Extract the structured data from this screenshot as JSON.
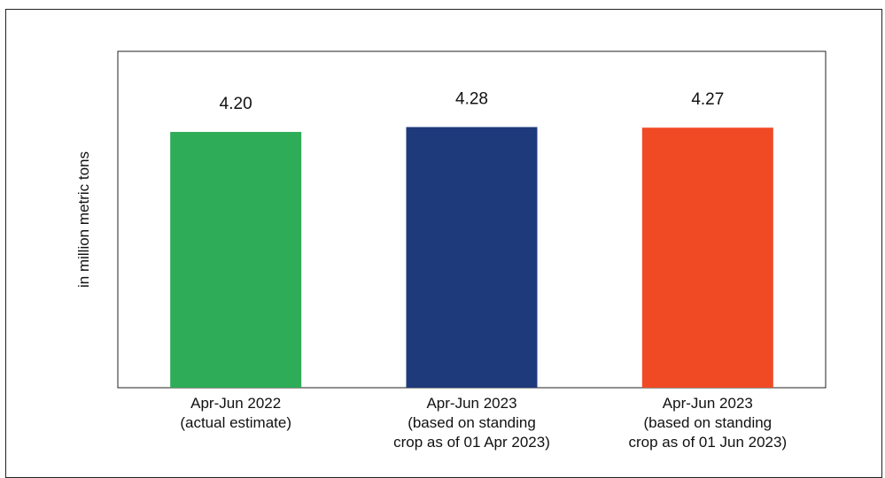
{
  "chart_data": {
    "type": "bar",
    "title": "",
    "xlabel": "",
    "ylabel": "in million metric tons",
    "ylim": [
      0,
      4.8
    ],
    "grid": false,
    "legend": "none",
    "categories": [
      [
        "Apr-Jun 2022",
        "(actual estimate)"
      ],
      [
        "Apr-Jun 2023",
        "(based on standing",
        "crop as of 01 Apr 2023)"
      ],
      [
        "Apr-Jun 2023",
        "(based on standing",
        "crop as of 01 Jun 2023)"
      ]
    ],
    "values": [
      4.2,
      4.28,
      4.27
    ],
    "value_labels": [
      "4.20",
      "4.28",
      "4.27"
    ],
    "colors": [
      "#2eac57",
      "#1f3a7a",
      "#f04a25"
    ]
  }
}
